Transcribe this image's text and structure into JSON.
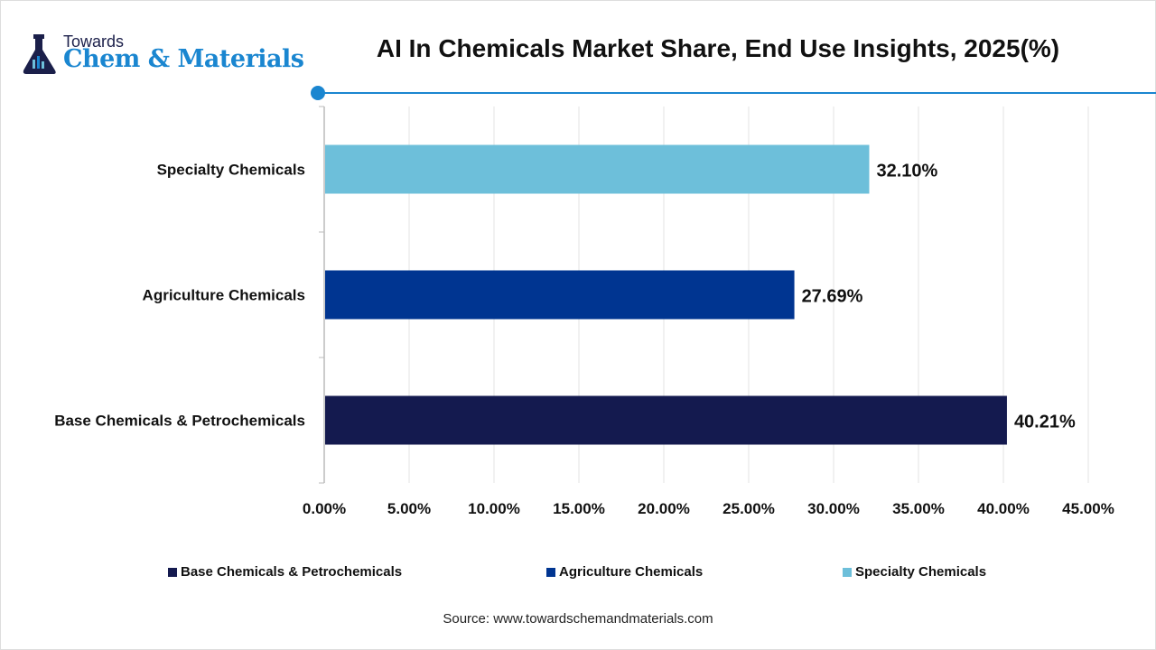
{
  "logo": {
    "line1": "Towards",
    "line2": "Chem & Materials"
  },
  "accent": "#1a86d0",
  "chart_data": {
    "type": "bar",
    "orientation": "horizontal",
    "title": "AI In Chemicals Market Share, End Use Insights, 2025(%)",
    "categories": [
      "Base Chemicals & Petrochemicals",
      "Agriculture Chemicals",
      "Specialty Chemicals"
    ],
    "values": [
      40.21,
      27.69,
      32.1
    ],
    "value_labels": [
      "40.21%",
      "27.69%",
      "32.10%"
    ],
    "colors": [
      "#141a4f",
      "#003591",
      "#6dbfda"
    ],
    "xlim": [
      0,
      45
    ],
    "xticks": [
      "0.00%",
      "5.00%",
      "10.00%",
      "15.00%",
      "20.00%",
      "25.00%",
      "30.00%",
      "35.00%",
      "40.00%",
      "45.00%"
    ],
    "grid": true,
    "legend": {
      "position": "bottom",
      "entries": [
        "Base Chemicals & Petrochemicals",
        "Agriculture Chemicals",
        "Specialty Chemicals"
      ]
    }
  },
  "source": "Source: www.towardschemandmaterials.com"
}
